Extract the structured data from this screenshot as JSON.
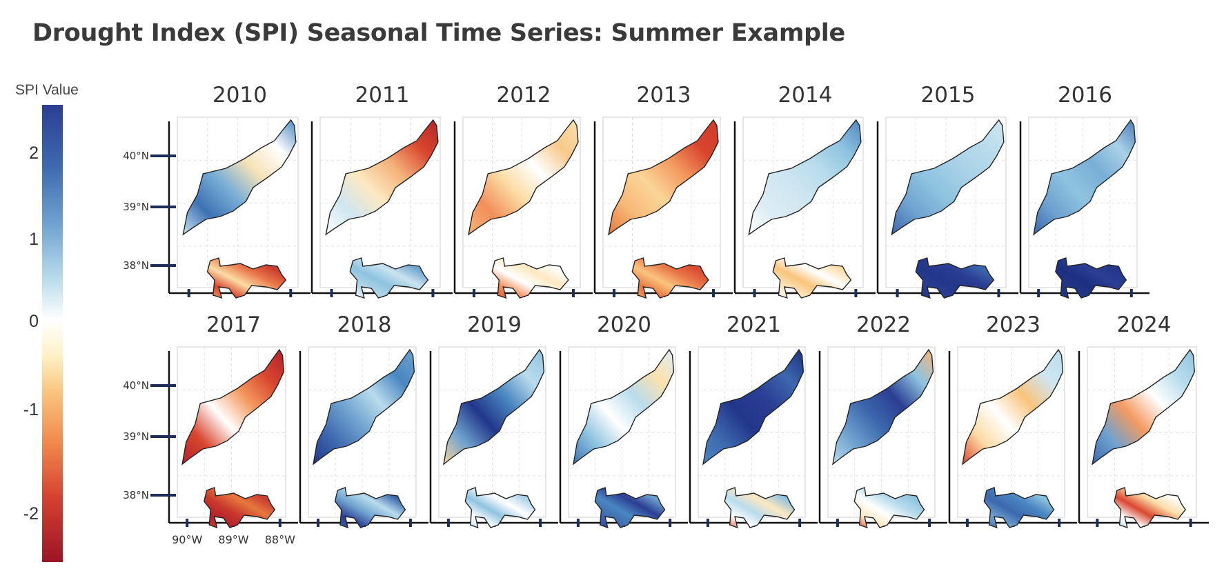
{
  "title": "Drought Index (SPI) Seasonal Time Series: Summer Example",
  "legend": {
    "label": "SPI Value",
    "ticks": [
      "2",
      "1",
      "0",
      "-1",
      "-2"
    ],
    "scale": {
      "min": -2.5,
      "max": 2.5
    },
    "colors": [
      "#2b3e93",
      "#3d68ae",
      "#6fa2cf",
      "#b9dcec",
      "#ffffff",
      "#fff0c6",
      "#f9c47d",
      "#f0884d",
      "#d54130",
      "#9c1426"
    ]
  },
  "lat_labels": [
    "40°N",
    "39°N",
    "38°N"
  ],
  "lon_labels": [
    "90°W",
    "89°W",
    "88°W"
  ],
  "years": [
    {
      "label": "2010",
      "upper": [
        "#c9e3ef",
        "#3d72b4",
        "#79aed6",
        "#f6e3b8",
        "#ffffff",
        "#4a86c1"
      ],
      "lower": [
        "#f3a26b",
        "#d9472f",
        "#fbdca5",
        "#e9784a",
        "#c93a2d",
        "#b9dcec"
      ]
    },
    {
      "label": "2011",
      "upper": [
        "#ffffff",
        "#cfe6f1",
        "#fde8c1",
        "#f3b27a",
        "#d9472f",
        "#b7242a"
      ],
      "lower": [
        "#ffffff",
        "#b4d8ea",
        "#8ec3e0",
        "#c9e3ef",
        "#6fa2cf",
        "#b9dcec"
      ]
    },
    {
      "label": "2012",
      "upper": [
        "#f6b57a",
        "#f28f5a",
        "#fbdca5",
        "#ffffff",
        "#f7c98c",
        "#fbe1ae"
      ],
      "lower": [
        "#d9472f",
        "#f28f5a",
        "#ffffff",
        "#fde8c1",
        "#ffffff",
        "#b9dcec"
      ]
    },
    {
      "label": "2013",
      "upper": [
        "#e7773f",
        "#f7b877",
        "#fbd598",
        "#f49a60",
        "#d8452e",
        "#cf3a2a"
      ],
      "lower": [
        "#f49a60",
        "#e7773f",
        "#f9c47d",
        "#e9784a",
        "#d9472f",
        "#f3b27a"
      ]
    },
    {
      "label": "2014",
      "upper": [
        "#ffffff",
        "#dcecf4",
        "#cfe6f1",
        "#b9dcec",
        "#8ec3e0",
        "#4f86c1"
      ],
      "lower": [
        "#ffffff",
        "#fde8c1",
        "#f9c47d",
        "#ffffff",
        "#fbdca5",
        "#cfe6f1"
      ]
    },
    {
      "label": "2015",
      "upper": [
        "#3d68ae",
        "#6fa2cf",
        "#8ec3e0",
        "#a9d1e7",
        "#b9dcec",
        "#cfe6f1"
      ],
      "lower": [
        "#1d2f80",
        "#2b3e93",
        "#22368a",
        "#2b3e93",
        "#3d68ae",
        "#2b3e93"
      ]
    },
    {
      "label": "2016",
      "upper": [
        "#3d68ae",
        "#6fa2cf",
        "#8ec3e0",
        "#79aed6",
        "#a9d1e7",
        "#4a7cba"
      ],
      "lower": [
        "#1d2f80",
        "#22368a",
        "#1d2f80",
        "#2b3e93",
        "#22368a",
        "#1d2f80"
      ]
    },
    {
      "label": "2017",
      "upper": [
        "#b3202b",
        "#d9472f",
        "#ffffff",
        "#f49a60",
        "#d8452e",
        "#b3202b"
      ],
      "lower": [
        "#d9472f",
        "#b3202b",
        "#c93a2d",
        "#e7773f",
        "#c93a2d",
        "#ffffff"
      ]
    },
    {
      "label": "2018",
      "upper": [
        "#22368a",
        "#3d68ae",
        "#6fa2cf",
        "#b9dcec",
        "#4a86c1",
        "#6fa2cf"
      ],
      "lower": [
        "#3d68ae",
        "#2b3e93",
        "#6fa2cf",
        "#b9dcec",
        "#3d68ae",
        "#4a86c1"
      ]
    },
    {
      "label": "2019",
      "upper": [
        "#f6d6a0",
        "#6fa2cf",
        "#22368a",
        "#4a86c1",
        "#b9dcec",
        "#8ec3e0"
      ],
      "lower": [
        "#b9dcec",
        "#ffffff",
        "#8ec3e0",
        "#ffffff",
        "#a9d1e7",
        "#cfe6f1"
      ]
    },
    {
      "label": "2020",
      "upper": [
        "#3d72b4",
        "#8ec3e0",
        "#ffffff",
        "#b9dcec",
        "#fbe1ae",
        "#dcecf4"
      ],
      "lower": [
        "#2b3e93",
        "#3d68ae",
        "#4a86c1",
        "#2b3e93",
        "#6fa2cf",
        "#3d68ae"
      ]
    },
    {
      "label": "2021",
      "upper": [
        "#4a86c1",
        "#3d68ae",
        "#22368a",
        "#2b3e93",
        "#3d68ae",
        "#1d2f80"
      ],
      "lower": [
        "#d9472f",
        "#ffffff",
        "#b9dcec",
        "#fde8c1",
        "#8ec3e0",
        "#6fa2cf"
      ]
    },
    {
      "label": "2022",
      "upper": [
        "#b9dcec",
        "#6fa2cf",
        "#3d68ae",
        "#2b3e93",
        "#8ec3e0",
        "#f6b57a"
      ],
      "lower": [
        "#c93a2d",
        "#fde8c1",
        "#ffffff",
        "#b9dcec",
        "#8ec3e0",
        "#6fa2cf"
      ]
    },
    {
      "label": "2023",
      "upper": [
        "#d9472f",
        "#fbdca5",
        "#ffffff",
        "#f9c47d",
        "#cfe6f1",
        "#b9dcec"
      ],
      "lower": [
        "#3d68ae",
        "#6fa2cf",
        "#3d68ae",
        "#4a86c1",
        "#8ec3e0",
        "#3d68ae"
      ]
    },
    {
      "label": "2024",
      "upper": [
        "#3d68ae",
        "#6fa2cf",
        "#f49a60",
        "#ffffff",
        "#b9dcec",
        "#8ec3e0"
      ],
      "lower": [
        "#b9dcec",
        "#ffffff",
        "#d9472f",
        "#fbdca5",
        "#ffffff",
        "#b9dcec"
      ]
    }
  ]
}
